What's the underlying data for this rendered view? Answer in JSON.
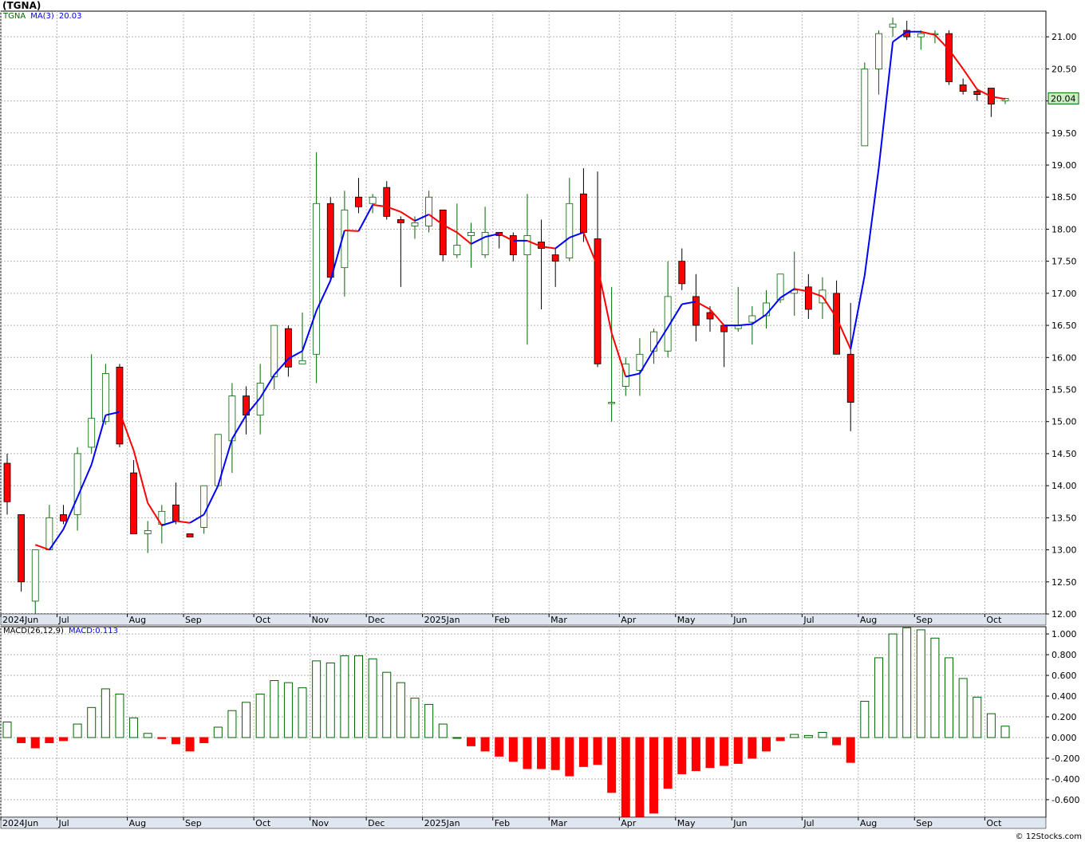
{
  "title": "(TGNA)",
  "watermark": "© 12Stocks.com",
  "colors": {
    "up_candle": "#006400",
    "down_candle": "#ff0000",
    "ma_up": "#0000ff",
    "ma_down": "#ff0000",
    "grid": "#b4b4b4",
    "axis_bg": "#dfe6f0",
    "price_label_bg": "#c8f0c0"
  },
  "price_panel": {
    "legend": {
      "symbol": "TGNA",
      "ma_label": "MA(3)",
      "ma_value": "20.03"
    },
    "last_price_label": "20.04"
  },
  "macd_panel": {
    "legend": {
      "params": "MACD(26,12,9)",
      "value_label": "MACD:0.113"
    }
  },
  "chart_data": [
    {
      "type": "candlestick",
      "title": "(TGNA)",
      "period": "weekly",
      "ylim": [
        12.0,
        21.4
      ],
      "yticks": [
        "12.00",
        "12.50",
        "13.00",
        "13.50",
        "14.00",
        "14.50",
        "15.00",
        "15.50",
        "16.00",
        "16.50",
        "17.00",
        "17.50",
        "18.00",
        "18.50",
        "19.00",
        "19.50",
        "20.00",
        "20.50",
        "21.00"
      ],
      "xtick_labels": [
        "2024Jun",
        "Jul",
        "Aug",
        "Sep",
        "Oct",
        "Nov",
        "Dec",
        "2025Jan",
        "Feb",
        "Mar",
        "Apr",
        "May",
        "Jun",
        "Jul",
        "Aug",
        "Sep",
        "Oct"
      ],
      "xtick_index": [
        0,
        4,
        9,
        13,
        18,
        22,
        26,
        30,
        35,
        39,
        44,
        48,
        52,
        57,
        61,
        65,
        70
      ],
      "grid": true,
      "candles": [
        {
          "o": 14.35,
          "h": 14.5,
          "l": 13.55,
          "c": 13.75
        },
        {
          "o": 13.55,
          "h": 13.55,
          "l": 12.35,
          "c": 12.5
        },
        {
          "o": 12.2,
          "h": 13.0,
          "l": 12.0,
          "c": 13.0
        },
        {
          "o": 13.0,
          "h": 13.7,
          "l": 13.0,
          "c": 13.5
        },
        {
          "o": 13.55,
          "h": 13.7,
          "l": 13.4,
          "c": 13.45
        },
        {
          "o": 13.55,
          "h": 14.6,
          "l": 13.3,
          "c": 14.5
        },
        {
          "o": 14.6,
          "h": 16.05,
          "l": 14.5,
          "c": 15.05
        },
        {
          "o": 15.0,
          "h": 15.9,
          "l": 14.95,
          "c": 15.75
        },
        {
          "o": 15.85,
          "h": 15.9,
          "l": 14.6,
          "c": 14.65
        },
        {
          "o": 14.2,
          "h": 14.4,
          "l": 13.3,
          "c": 13.25
        },
        {
          "o": 13.25,
          "h": 13.45,
          "l": 12.95,
          "c": 13.3
        },
        {
          "o": 13.4,
          "h": 13.7,
          "l": 13.1,
          "c": 13.6
        },
        {
          "o": 13.7,
          "h": 14.05,
          "l": 13.4,
          "c": 13.45
        },
        {
          "o": 13.25,
          "h": 13.25,
          "l": 13.2,
          "c": 13.2
        },
        {
          "o": 13.35,
          "h": 14.0,
          "l": 13.25,
          "c": 14.0
        },
        {
          "o": 14.0,
          "h": 14.8,
          "l": 14.0,
          "c": 14.8
        },
        {
          "o": 14.7,
          "h": 15.6,
          "l": 14.2,
          "c": 15.4
        },
        {
          "o": 15.4,
          "h": 15.55,
          "l": 14.8,
          "c": 15.1
        },
        {
          "o": 15.1,
          "h": 15.9,
          "l": 14.8,
          "c": 15.6
        },
        {
          "o": 15.7,
          "h": 16.5,
          "l": 15.5,
          "c": 16.5
        },
        {
          "o": 16.45,
          "h": 16.5,
          "l": 15.7,
          "c": 15.85
        },
        {
          "o": 15.9,
          "h": 16.7,
          "l": 15.9,
          "c": 15.95
        },
        {
          "o": 16.05,
          "h": 19.2,
          "l": 15.6,
          "c": 18.4
        },
        {
          "o": 18.4,
          "h": 18.5,
          "l": 17.2,
          "c": 17.25
        },
        {
          "o": 17.4,
          "h": 18.6,
          "l": 16.95,
          "c": 18.3
        },
        {
          "o": 18.5,
          "h": 18.8,
          "l": 18.25,
          "c": 18.35
        },
        {
          "o": 18.4,
          "h": 18.55,
          "l": 18.25,
          "c": 18.5
        },
        {
          "o": 18.65,
          "h": 18.75,
          "l": 18.15,
          "c": 18.2
        },
        {
          "o": 18.15,
          "h": 18.2,
          "l": 17.1,
          "c": 18.1
        },
        {
          "o": 18.05,
          "h": 18.2,
          "l": 17.85,
          "c": 18.1
        },
        {
          "o": 18.05,
          "h": 18.6,
          "l": 17.95,
          "c": 18.5
        },
        {
          "o": 18.3,
          "h": 18.3,
          "l": 17.5,
          "c": 17.6
        },
        {
          "o": 17.6,
          "h": 18.4,
          "l": 17.55,
          "c": 17.75
        },
        {
          "o": 17.9,
          "h": 18.1,
          "l": 17.4,
          "c": 17.95
        },
        {
          "o": 17.6,
          "h": 18.35,
          "l": 17.55,
          "c": 17.95
        },
        {
          "o": 17.95,
          "h": 17.95,
          "l": 17.7,
          "c": 17.9
        },
        {
          "o": 17.9,
          "h": 17.95,
          "l": 17.5,
          "c": 17.6
        },
        {
          "o": 17.6,
          "h": 18.55,
          "l": 16.2,
          "c": 17.9
        },
        {
          "o": 17.8,
          "h": 18.15,
          "l": 16.75,
          "c": 17.7
        },
        {
          "o": 17.6,
          "h": 17.7,
          "l": 17.1,
          "c": 17.5
        },
        {
          "o": 17.55,
          "h": 18.8,
          "l": 17.5,
          "c": 18.4
        },
        {
          "o": 18.55,
          "h": 18.95,
          "l": 17.8,
          "c": 17.95
        },
        {
          "o": 17.85,
          "h": 18.9,
          "l": 15.85,
          "c": 15.9
        },
        {
          "o": 15.3,
          "h": 17.1,
          "l": 15.0,
          "c": 15.3
        },
        {
          "o": 15.55,
          "h": 16.0,
          "l": 15.4,
          "c": 15.9
        },
        {
          "o": 15.8,
          "h": 16.3,
          "l": 15.4,
          "c": 16.05
        },
        {
          "o": 16.1,
          "h": 16.45,
          "l": 15.9,
          "c": 16.4
        },
        {
          "o": 16.1,
          "h": 17.5,
          "l": 16.0,
          "c": 16.95
        },
        {
          "o": 17.5,
          "h": 17.7,
          "l": 17.05,
          "c": 17.15
        },
        {
          "o": 16.95,
          "h": 17.3,
          "l": 16.25,
          "c": 16.5
        },
        {
          "o": 16.7,
          "h": 16.8,
          "l": 16.4,
          "c": 16.6
        },
        {
          "o": 16.5,
          "h": 16.5,
          "l": 15.85,
          "c": 16.4
        },
        {
          "o": 16.45,
          "h": 17.1,
          "l": 16.4,
          "c": 16.5
        },
        {
          "o": 16.55,
          "h": 16.8,
          "l": 16.2,
          "c": 16.65
        },
        {
          "o": 16.65,
          "h": 17.05,
          "l": 16.45,
          "c": 16.85
        },
        {
          "o": 16.9,
          "h": 17.3,
          "l": 16.85,
          "c": 17.3
        },
        {
          "o": 17.0,
          "h": 17.65,
          "l": 16.65,
          "c": 17.05
        },
        {
          "o": 17.1,
          "h": 17.3,
          "l": 16.6,
          "c": 16.75
        },
        {
          "o": 16.85,
          "h": 17.25,
          "l": 16.6,
          "c": 17.05
        },
        {
          "o": 17.0,
          "h": 17.2,
          "l": 16.05,
          "c": 16.05
        },
        {
          "o": 16.05,
          "h": 16.85,
          "l": 14.85,
          "c": 15.3
        },
        {
          "o": 19.3,
          "h": 20.6,
          "l": 19.3,
          "c": 20.5
        },
        {
          "o": 20.5,
          "h": 21.1,
          "l": 20.1,
          "c": 21.05
        },
        {
          "o": 21.15,
          "h": 21.3,
          "l": 21.0,
          "c": 21.2
        },
        {
          "o": 21.1,
          "h": 21.25,
          "l": 20.95,
          "c": 21.0
        },
        {
          "o": 21.0,
          "h": 21.1,
          "l": 20.8,
          "c": 21.05
        },
        {
          "o": 21.05,
          "h": 21.1,
          "l": 20.9,
          "c": 21.05
        },
        {
          "o": 21.05,
          "h": 21.1,
          "l": 20.25,
          "c": 20.3
        },
        {
          "o": 20.25,
          "h": 20.35,
          "l": 20.1,
          "c": 20.15
        },
        {
          "o": 20.15,
          "h": 20.2,
          "l": 20.0,
          "c": 20.1
        },
        {
          "o": 20.2,
          "h": 20.2,
          "l": 19.75,
          "c": 19.95
        },
        {
          "o": 20.0,
          "h": 20.05,
          "l": 19.95,
          "c": 20.04
        }
      ],
      "ma3": [
        null,
        null,
        13.08,
        13.0,
        13.32,
        13.82,
        14.33,
        15.1,
        15.15,
        14.55,
        13.73,
        13.38,
        13.45,
        13.42,
        13.55,
        14.0,
        14.73,
        15.1,
        15.37,
        15.73,
        15.98,
        16.1,
        16.73,
        17.2,
        17.98,
        17.97,
        18.38,
        18.35,
        18.27,
        18.13,
        18.23,
        18.07,
        17.95,
        17.77,
        17.88,
        17.93,
        17.82,
        17.82,
        17.73,
        17.7,
        17.87,
        17.95,
        17.42,
        16.38,
        15.7,
        15.75,
        16.12,
        16.47,
        16.83,
        16.87,
        16.75,
        16.5,
        16.5,
        16.52,
        16.67,
        16.93,
        17.07,
        17.03,
        16.95,
        16.62,
        16.13,
        17.28,
        18.95,
        20.92,
        21.08,
        21.08,
        21.03,
        20.8,
        20.5,
        20.18,
        20.07,
        20.03
      ]
    },
    {
      "type": "bar",
      "title": "MACD(26,12,9)",
      "ylim": [
        -0.77,
        1.07
      ],
      "yticks": [
        "-0.600",
        "-0.400",
        "-0.200",
        "0.000",
        "0.200",
        "0.400",
        "0.600",
        "0.800",
        "1.000"
      ],
      "xtick_labels": [
        "2024Jun",
        "Jul",
        "Aug",
        "Sep",
        "Oct",
        "Nov",
        "Dec",
        "2025Jan",
        "Feb",
        "Mar",
        "Apr",
        "May",
        "Jun",
        "Jul",
        "Aug",
        "Sep",
        "Oct"
      ],
      "xtick_index": [
        0,
        4,
        9,
        13,
        18,
        22,
        26,
        30,
        35,
        39,
        44,
        48,
        52,
        57,
        61,
        65,
        70
      ],
      "grid": true,
      "values": [
        0.15,
        -0.05,
        -0.1,
        -0.05,
        -0.03,
        0.13,
        0.29,
        0.47,
        0.42,
        0.19,
        0.04,
        -0.01,
        -0.06,
        -0.13,
        -0.05,
        0.1,
        0.26,
        0.34,
        0.42,
        0.55,
        0.53,
        0.48,
        0.74,
        0.72,
        0.79,
        0.79,
        0.76,
        0.63,
        0.53,
        0.38,
        0.32,
        0.13,
        0.0,
        -0.08,
        -0.13,
        -0.18,
        -0.23,
        -0.3,
        -0.3,
        -0.31,
        -0.37,
        -0.28,
        -0.26,
        -0.53,
        -0.79,
        -0.77,
        -0.73,
        -0.49,
        -0.35,
        -0.32,
        -0.29,
        -0.27,
        -0.25,
        -0.2,
        -0.13,
        -0.03,
        0.03,
        0.02,
        0.05,
        -0.07,
        -0.24,
        0.35,
        0.77,
        1.0,
        1.06,
        1.04,
        0.96,
        0.77,
        0.57,
        0.39,
        0.23,
        0.11
      ]
    }
  ]
}
